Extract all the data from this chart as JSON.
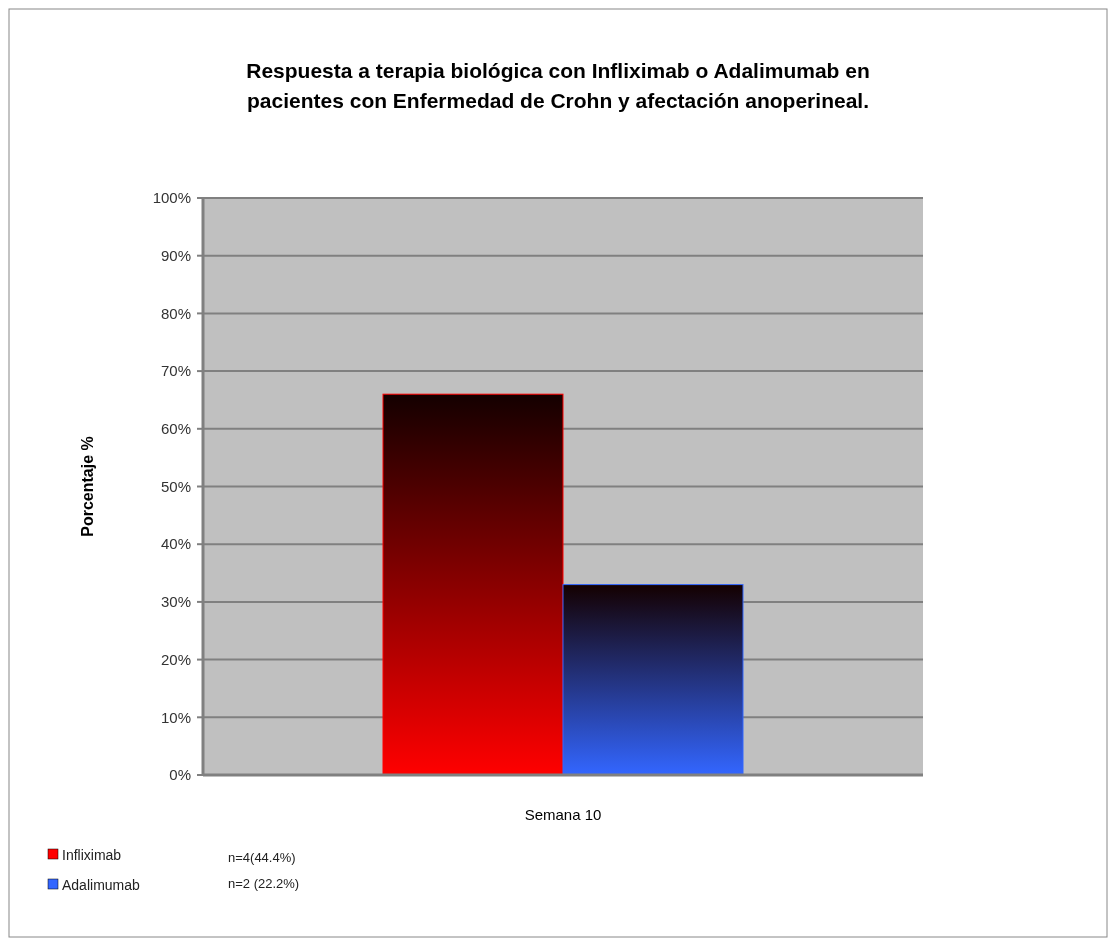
{
  "chart_data": {
    "type": "bar",
    "title": "Respuesta a terapia biológica con Infliximab o Adalimumab en pacientes con Enfermedad de Crohn y afectación anoperineal.",
    "ylabel": "Porcentaje %",
    "categories": [
      "Semana 10"
    ],
    "series": [
      {
        "name": "Infliximab",
        "color": "#ff0000",
        "values": [
          66
        ]
      },
      {
        "name": "Adalimumab",
        "color": "#3366ff",
        "values": [
          33
        ]
      }
    ],
    "ylim": [
      0,
      100
    ],
    "yticks": [
      {
        "value": 0,
        "label": "0%"
      },
      {
        "value": 10,
        "label": "10%"
      },
      {
        "value": 20,
        "label": "20%"
      },
      {
        "value": 30,
        "label": "30%"
      },
      {
        "value": 40,
        "label": "40%"
      },
      {
        "value": 50,
        "label": "50%"
      },
      {
        "value": 60,
        "label": "60%"
      },
      {
        "value": 70,
        "label": "70%"
      },
      {
        "value": 80,
        "label": "80%"
      },
      {
        "value": 90,
        "label": "90%"
      },
      {
        "value": 100,
        "label": "100%"
      }
    ],
    "grid": "y",
    "legend": "bottom left",
    "annotations": [
      "n=4(44.4%)",
      "n=2 (22.2%)"
    ]
  }
}
